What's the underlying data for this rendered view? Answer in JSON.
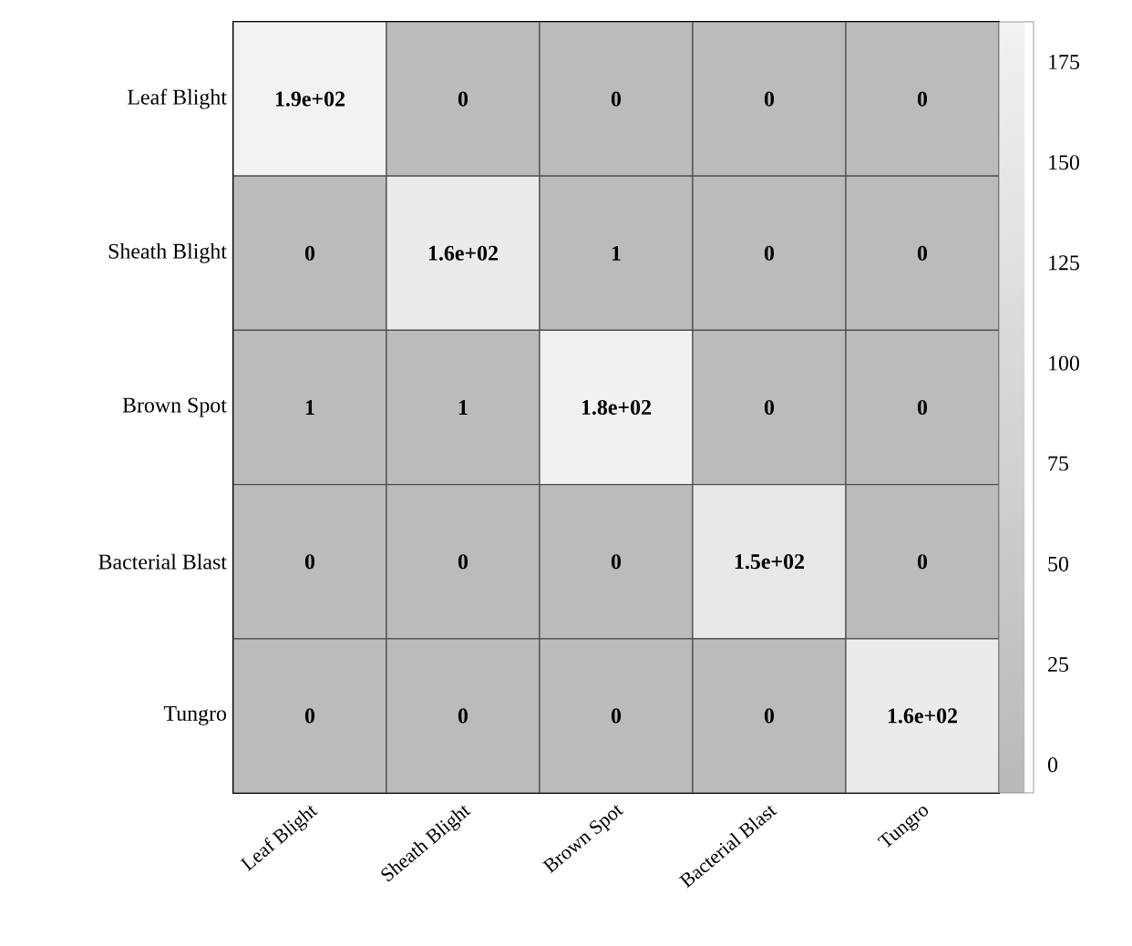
{
  "chart_data": {
    "type": "heatmap",
    "categories": [
      "Leaf Blight",
      "Sheath Blight",
      "Brown Spot",
      "Bacterial Blast",
      "Tungro"
    ],
    "y_categories": [
      "Leaf Blight",
      "Sheath Blight",
      "Brown Spot",
      "Bacterial Blast",
      "Tungro"
    ],
    "cells": [
      [
        185,
        0,
        0,
        0,
        0
      ],
      [
        0,
        160,
        1,
        0,
        0
      ],
      [
        1,
        1,
        180,
        0,
        0
      ],
      [
        0,
        0,
        0,
        150,
        0
      ],
      [
        0,
        0,
        0,
        0,
        160
      ]
    ],
    "cell_labels": [
      [
        "1.9e+02",
        "0",
        "0",
        "0",
        "0"
      ],
      [
        "0",
        "1.6e+02",
        "1",
        "0",
        "0"
      ],
      [
        "1",
        "1",
        "1.8e+02",
        "0",
        "0"
      ],
      [
        "0",
        "0",
        "0",
        "1.5e+02",
        "0"
      ],
      [
        "0",
        "0",
        "0",
        "0",
        "1.6e+02"
      ]
    ],
    "clim": [
      -7,
      185
    ],
    "cticks": [
      0,
      25,
      50,
      75,
      100,
      125,
      150,
      175
    ]
  }
}
